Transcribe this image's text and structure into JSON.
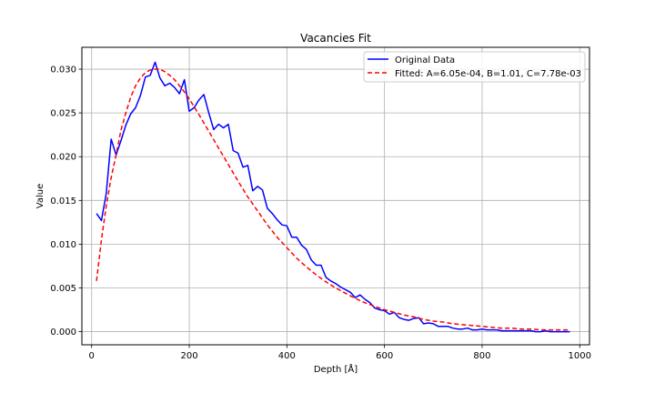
{
  "chart_data": {
    "type": "line",
    "title": "Vacancies Fit",
    "xlabel": "Depth [Å]",
    "ylabel": "Value",
    "xlim": [
      -20,
      1020
    ],
    "ylim": [
      -0.0015,
      0.0325
    ],
    "xticks": [
      0,
      200,
      400,
      600,
      800,
      1000
    ],
    "yticks": [
      0.0,
      0.005,
      0.01,
      0.015,
      0.02,
      0.025,
      0.03
    ],
    "xtick_labels": [
      "0",
      "200",
      "400",
      "600",
      "800",
      "1000"
    ],
    "ytick_labels": [
      "0.000",
      "0.005",
      "0.010",
      "0.015",
      "0.020",
      "0.025",
      "0.030"
    ],
    "grid": true,
    "legend_position": "top-right",
    "series": [
      {
        "name": "Original Data",
        "color": "#0000ff",
        "style": "solid",
        "x": [
          10,
          20,
          30,
          40,
          50,
          60,
          70,
          80,
          90,
          100,
          110,
          120,
          130,
          140,
          150,
          160,
          170,
          180,
          190,
          200,
          210,
          220,
          230,
          240,
          250,
          260,
          270,
          280,
          290,
          300,
          310,
          320,
          330,
          340,
          350,
          360,
          370,
          380,
          390,
          400,
          410,
          420,
          430,
          440,
          450,
          460,
          470,
          480,
          490,
          500,
          510,
          520,
          530,
          540,
          550,
          560,
          570,
          580,
          590,
          600,
          610,
          620,
          630,
          640,
          650,
          660,
          670,
          680,
          690,
          700,
          710,
          720,
          730,
          740,
          750,
          760,
          770,
          780,
          790,
          800,
          810,
          820,
          830,
          840,
          850,
          860,
          870,
          880,
          890,
          900,
          910,
          920,
          930,
          940,
          950,
          960,
          970,
          980
        ],
        "y": [
          0.0135,
          0.0127,
          0.0158,
          0.022,
          0.0202,
          0.0218,
          0.0236,
          0.0249,
          0.0256,
          0.027,
          0.0291,
          0.0293,
          0.0308,
          0.029,
          0.0281,
          0.0284,
          0.0279,
          0.0272,
          0.0288,
          0.0252,
          0.0256,
          0.0265,
          0.0271,
          0.025,
          0.0231,
          0.0237,
          0.0233,
          0.0237,
          0.0207,
          0.0204,
          0.0188,
          0.019,
          0.0161,
          0.0166,
          0.0162,
          0.0141,
          0.0135,
          0.0128,
          0.0122,
          0.0121,
          0.0108,
          0.0108,
          0.0099,
          0.0094,
          0.0082,
          0.0076,
          0.0076,
          0.0062,
          0.0058,
          0.0055,
          0.0051,
          0.0048,
          0.0045,
          0.0039,
          0.0042,
          0.0037,
          0.0033,
          0.0027,
          0.0025,
          0.0024,
          0.002,
          0.0022,
          0.0016,
          0.0014,
          0.0013,
          0.0015,
          0.0016,
          0.0009,
          0.001,
          0.0009,
          0.0006,
          0.0006,
          0.0006,
          0.0004,
          0.0003,
          0.0003,
          0.0004,
          0.0002,
          0.0002,
          0.0003,
          0.0002,
          0.0002,
          0.0002,
          0.0001,
          0.0001,
          0.0001,
          0.0001,
          0.0001,
          0.0001,
          0.0001,
          0.0,
          0.0,
          0.0001,
          0.0,
          0.0,
          0.0,
          0.0,
          0.0
        ]
      },
      {
        "name": "Fitted: A=6.05e-04, B=1.01, C=7.78e-03",
        "color": "#ff0000",
        "style": "dashed",
        "x": [
          10,
          20,
          30,
          40,
          50,
          60,
          70,
          80,
          90,
          100,
          110,
          120,
          130,
          140,
          150,
          160,
          170,
          180,
          190,
          200,
          220,
          240,
          260,
          280,
          300,
          320,
          340,
          360,
          380,
          400,
          420,
          440,
          460,
          480,
          500,
          520,
          540,
          560,
          580,
          600,
          620,
          640,
          660,
          680,
          700,
          720,
          740,
          760,
          780,
          800,
          820,
          840,
          860,
          880,
          900,
          920,
          940,
          960,
          980
        ],
        "y": [
          0.0058,
          0.0105,
          0.0144,
          0.0176,
          0.0202,
          0.023,
          0.025,
          0.0268,
          0.0281,
          0.029,
          0.0296,
          0.0299,
          0.03,
          0.03,
          0.0297,
          0.0293,
          0.0288,
          0.0281,
          0.0274,
          0.0266,
          0.0248,
          0.0229,
          0.021,
          0.0191,
          0.0172,
          0.0154,
          0.0138,
          0.0122,
          0.0108,
          0.0096,
          0.0084,
          0.0074,
          0.0065,
          0.0057,
          0.005,
          0.0044,
          0.0038,
          0.0033,
          0.0029,
          0.0025,
          0.0022,
          0.0019,
          0.0017,
          0.0014,
          0.0012,
          0.0011,
          0.0009,
          0.0008,
          0.0007,
          0.0006,
          0.0005,
          0.0004,
          0.0004,
          0.0003,
          0.0003,
          0.0002,
          0.0002,
          0.0002,
          0.0002
        ]
      }
    ]
  }
}
